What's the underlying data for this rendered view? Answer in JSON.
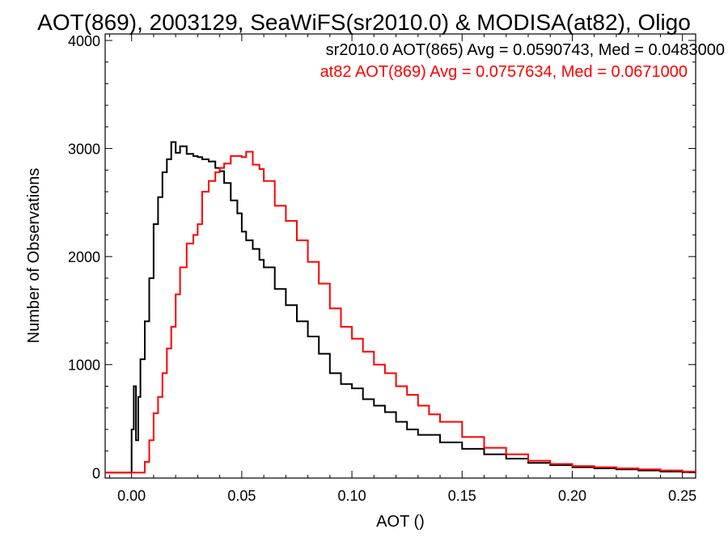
{
  "chart_data": {
    "type": "line",
    "title": "AOT(869), 2003129, SeaWiFS(sr2010.0) & MODISA(at82), Oligo",
    "xlabel": "AOT ()",
    "ylabel": "Number of Observations",
    "xlim": [
      -0.012,
      0.256
    ],
    "ylim": [
      -50,
      4060
    ],
    "xticks": [
      0.0,
      0.05,
      0.1,
      0.15,
      0.2,
      0.25
    ],
    "xtick_labels": [
      "0.00",
      "0.05",
      "0.10",
      "0.15",
      "0.20",
      "0.25"
    ],
    "yticks": [
      0,
      1000,
      2000,
      3000,
      4000
    ],
    "ytick_labels": [
      "0",
      "1000",
      "2000",
      "3000",
      "4000"
    ],
    "grid": false,
    "legend_placement": "top-right",
    "series": [
      {
        "name": "sr2010.0 AOT(865) Avg = 0.0590743, Med = 0.0483000",
        "color": "#000000",
        "x": [
          -0.012,
          -0.001,
          0.0,
          0.001,
          0.002,
          0.003,
          0.004,
          0.006,
          0.008,
          0.01,
          0.012,
          0.014,
          0.016,
          0.018,
          0.02,
          0.022,
          0.025,
          0.028,
          0.03,
          0.032,
          0.035,
          0.038,
          0.04,
          0.042,
          0.045,
          0.048,
          0.05,
          0.052,
          0.055,
          0.058,
          0.06,
          0.065,
          0.07,
          0.075,
          0.08,
          0.085,
          0.09,
          0.095,
          0.1,
          0.105,
          0.11,
          0.115,
          0.12,
          0.125,
          0.13,
          0.14,
          0.15,
          0.16,
          0.17,
          0.18,
          0.19,
          0.2,
          0.21,
          0.22,
          0.23,
          0.24,
          0.25,
          0.256
        ],
        "y": [
          0,
          0,
          400,
          800,
          300,
          700,
          1050,
          1400,
          1800,
          2300,
          2550,
          2780,
          2900,
          3060,
          2960,
          3020,
          2950,
          2930,
          2920,
          2900,
          2880,
          2820,
          2790,
          2680,
          2520,
          2400,
          2230,
          2150,
          2070,
          1970,
          1900,
          1700,
          1550,
          1400,
          1260,
          1100,
          920,
          820,
          780,
          680,
          620,
          560,
          470,
          400,
          350,
          280,
          220,
          170,
          130,
          90,
          70,
          50,
          40,
          30,
          20,
          10,
          5,
          0
        ]
      },
      {
        "name": "at82 AOT(869) Avg = 0.0757634, Med = 0.0671000",
        "color": "#ff0000",
        "x": [
          -0.012,
          0.005,
          0.006,
          0.008,
          0.01,
          0.012,
          0.014,
          0.016,
          0.018,
          0.02,
          0.022,
          0.025,
          0.028,
          0.03,
          0.032,
          0.035,
          0.038,
          0.04,
          0.042,
          0.045,
          0.048,
          0.05,
          0.052,
          0.055,
          0.058,
          0.06,
          0.065,
          0.07,
          0.075,
          0.08,
          0.085,
          0.09,
          0.095,
          0.1,
          0.105,
          0.11,
          0.115,
          0.12,
          0.125,
          0.13,
          0.135,
          0.14,
          0.15,
          0.16,
          0.17,
          0.18,
          0.19,
          0.2,
          0.21,
          0.22,
          0.23,
          0.24,
          0.25,
          0.256
        ],
        "y": [
          0,
          0,
          100,
          300,
          550,
          700,
          920,
          1150,
          1350,
          1650,
          1900,
          2120,
          2200,
          2300,
          2600,
          2700,
          2780,
          2820,
          2860,
          2930,
          2930,
          2920,
          2970,
          2850,
          2810,
          2700,
          2470,
          2330,
          2150,
          1950,
          1750,
          1520,
          1350,
          1240,
          1120,
          1000,
          920,
          800,
          720,
          620,
          540,
          470,
          330,
          230,
          170,
          110,
          80,
          60,
          50,
          40,
          30,
          20,
          10,
          0
        ]
      }
    ]
  }
}
